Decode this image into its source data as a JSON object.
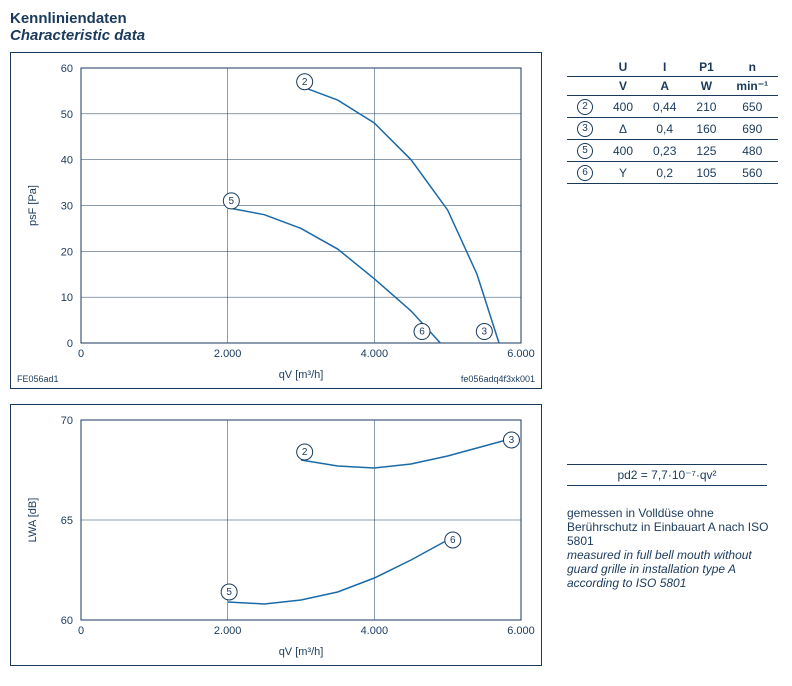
{
  "title_de": "Kennliniendaten",
  "title_en": "Characteristic data",
  "chart1": {
    "type": "line",
    "xlabel": "qV  [m³/h]",
    "ylabel": "psF  [Pa]",
    "xlim": [
      0,
      6000
    ],
    "xtick_step": 2000,
    "ylim": [
      0,
      60
    ],
    "ytick_step": 10,
    "grid_color": "#1a3a5c",
    "curve_color": "#1a6aa8",
    "background": "#ffffff",
    "series": [
      {
        "label": "2",
        "label_xy": [
          3050,
          57
        ],
        "points": [
          [
            3000,
            56
          ],
          [
            3500,
            53
          ],
          [
            4000,
            48
          ],
          [
            4500,
            40
          ],
          [
            5000,
            29
          ],
          [
            5400,
            15
          ],
          [
            5700,
            0
          ]
        ]
      },
      {
        "label": "3",
        "label_xy": [
          5500,
          2.5
        ],
        "points": []
      },
      {
        "label": "5",
        "label_xy": [
          2050,
          31
        ],
        "points": [
          [
            2000,
            29.5
          ],
          [
            2500,
            28
          ],
          [
            3000,
            25
          ],
          [
            3500,
            20.5
          ],
          [
            4000,
            14
          ],
          [
            4500,
            7
          ],
          [
            4900,
            0
          ]
        ]
      },
      {
        "label": "6",
        "label_xy": [
          4650,
          2.5
        ],
        "points": []
      }
    ],
    "ref_left": "FE056ad1",
    "ref_right": "fe056adq4f3xk001"
  },
  "chart2": {
    "type": "line",
    "xlabel": "qV  [m³/h]",
    "ylabel": "LWA  [dB]",
    "xlim": [
      0,
      6000
    ],
    "xtick_step": 2000,
    "ylim": [
      60,
      70
    ],
    "ytick_step": 5,
    "grid_color": "#1a3a5c",
    "curve_color": "#1a6aa8",
    "background": "#ffffff",
    "series": [
      {
        "label": "2",
        "label_xy": [
          3050,
          68.4
        ],
        "points": [
          [
            3000,
            68
          ],
          [
            3500,
            67.7
          ],
          [
            4000,
            67.6
          ],
          [
            4500,
            67.8
          ],
          [
            5000,
            68.2
          ],
          [
            5500,
            68.7
          ],
          [
            5800,
            69
          ]
        ]
      },
      {
        "label": "3",
        "label_xy": [
          5870,
          69
        ],
        "points": []
      },
      {
        "label": "5",
        "label_xy": [
          2020,
          61.4
        ],
        "points": [
          [
            2000,
            60.9
          ],
          [
            2500,
            60.8
          ],
          [
            3000,
            61
          ],
          [
            3500,
            61.4
          ],
          [
            4000,
            62.1
          ],
          [
            4500,
            63
          ],
          [
            5000,
            64
          ]
        ]
      },
      {
        "label": "6",
        "label_xy": [
          5070,
          64
        ],
        "points": []
      }
    ]
  },
  "table": {
    "headers": [
      "",
      "U",
      "I",
      "P1",
      "n"
    ],
    "units": [
      "",
      "V",
      "A",
      "W",
      "min⁻¹"
    ],
    "rows": [
      {
        "num": "2",
        "U": "400",
        "I": "0,44",
        "P": "210",
        "n": "650"
      },
      {
        "num": "3",
        "U": "Δ",
        "I": "0,4",
        "P": "160",
        "n": "690"
      },
      {
        "num": "5",
        "U": "400",
        "I": "0,23",
        "P": "125",
        "n": "480"
      },
      {
        "num": "6",
        "U": "Y",
        "I": "0,2",
        "P": "105",
        "n": "560"
      }
    ]
  },
  "formula": "pd2 = 7,7·10⁻⁷·qv²",
  "notes_de": "gemessen in Volldüse ohne Berührschutz in Einbauart A nach ISO 5801",
  "notes_en": "measured in full bell mouth without guard grille in installation type A according to ISO 5801"
}
